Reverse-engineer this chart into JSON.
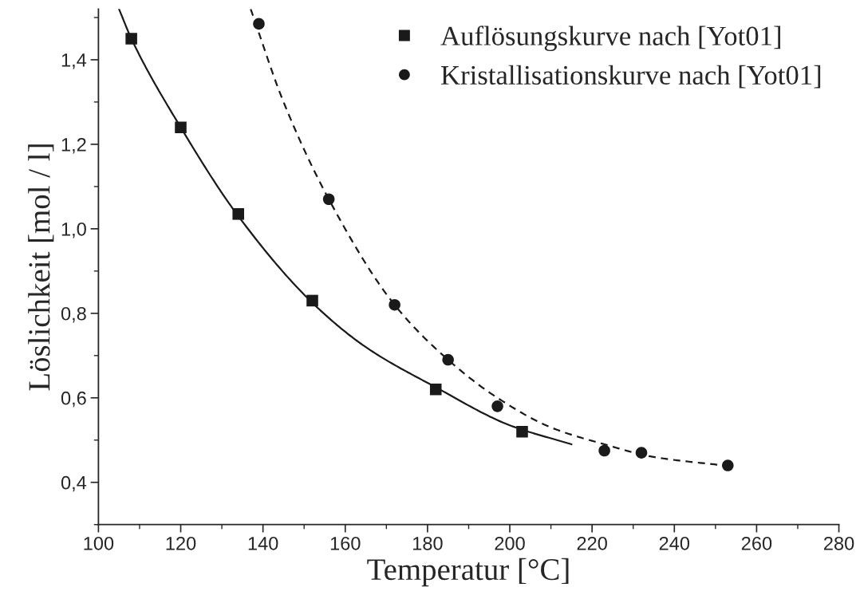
{
  "chart_data": {
    "type": "scatter",
    "xlabel": "Temperatur [°C]",
    "ylabel": "Löslichkeit [mol / l]",
    "xlim": [
      100,
      280
    ],
    "xticks": [
      100,
      120,
      140,
      160,
      180,
      200,
      220,
      240,
      260,
      280
    ],
    "ylim": [
      0.3,
      1.52
    ],
    "yticks": [
      {
        "value": 0.4,
        "label": "0,4"
      },
      {
        "value": 0.6,
        "label": "0,6"
      },
      {
        "value": 0.8,
        "label": "0,8"
      },
      {
        "value": 1.0,
        "label": "1,0"
      },
      {
        "value": 1.2,
        "label": "1,2"
      },
      {
        "value": 1.4,
        "label": "1,4"
      }
    ],
    "grid": false,
    "legend": "top right",
    "series": [
      {
        "name": "Auflösungskurve nach [Yot01]",
        "marker": "square",
        "color": "#1a1a1a",
        "x": [
          108,
          120,
          134,
          152,
          182,
          203
        ],
        "values": [
          1.45,
          1.24,
          1.035,
          0.83,
          0.62,
          0.52
        ]
      },
      {
        "name": "Kristallisationskurve nach [Yot01]",
        "marker": "circle",
        "color": "#1a1a1a",
        "x": [
          139,
          156,
          172,
          185,
          197,
          223,
          232,
          253
        ],
        "values": [
          1.485,
          1.07,
          0.82,
          0.69,
          0.58,
          0.475,
          0.47,
          0.44
        ]
      },
      {
        "type": "line",
        "line_style": "solid",
        "color": "#1a1a1a",
        "x": [
          105,
          108,
          120,
          134,
          152,
          165,
          182,
          200,
          215
        ],
        "values": [
          1.52,
          1.45,
          1.24,
          1.03,
          0.825,
          0.72,
          0.625,
          0.535,
          0.49
        ]
      },
      {
        "type": "line",
        "line_style": "dashed",
        "color": "#1a1a1a",
        "x": [
          137,
          145,
          156,
          172,
          185,
          197,
          210,
          223,
          235,
          252
        ],
        "values": [
          1.52,
          1.3,
          1.07,
          0.82,
          0.69,
          0.6,
          0.53,
          0.49,
          0.46,
          0.44
        ]
      }
    ]
  }
}
